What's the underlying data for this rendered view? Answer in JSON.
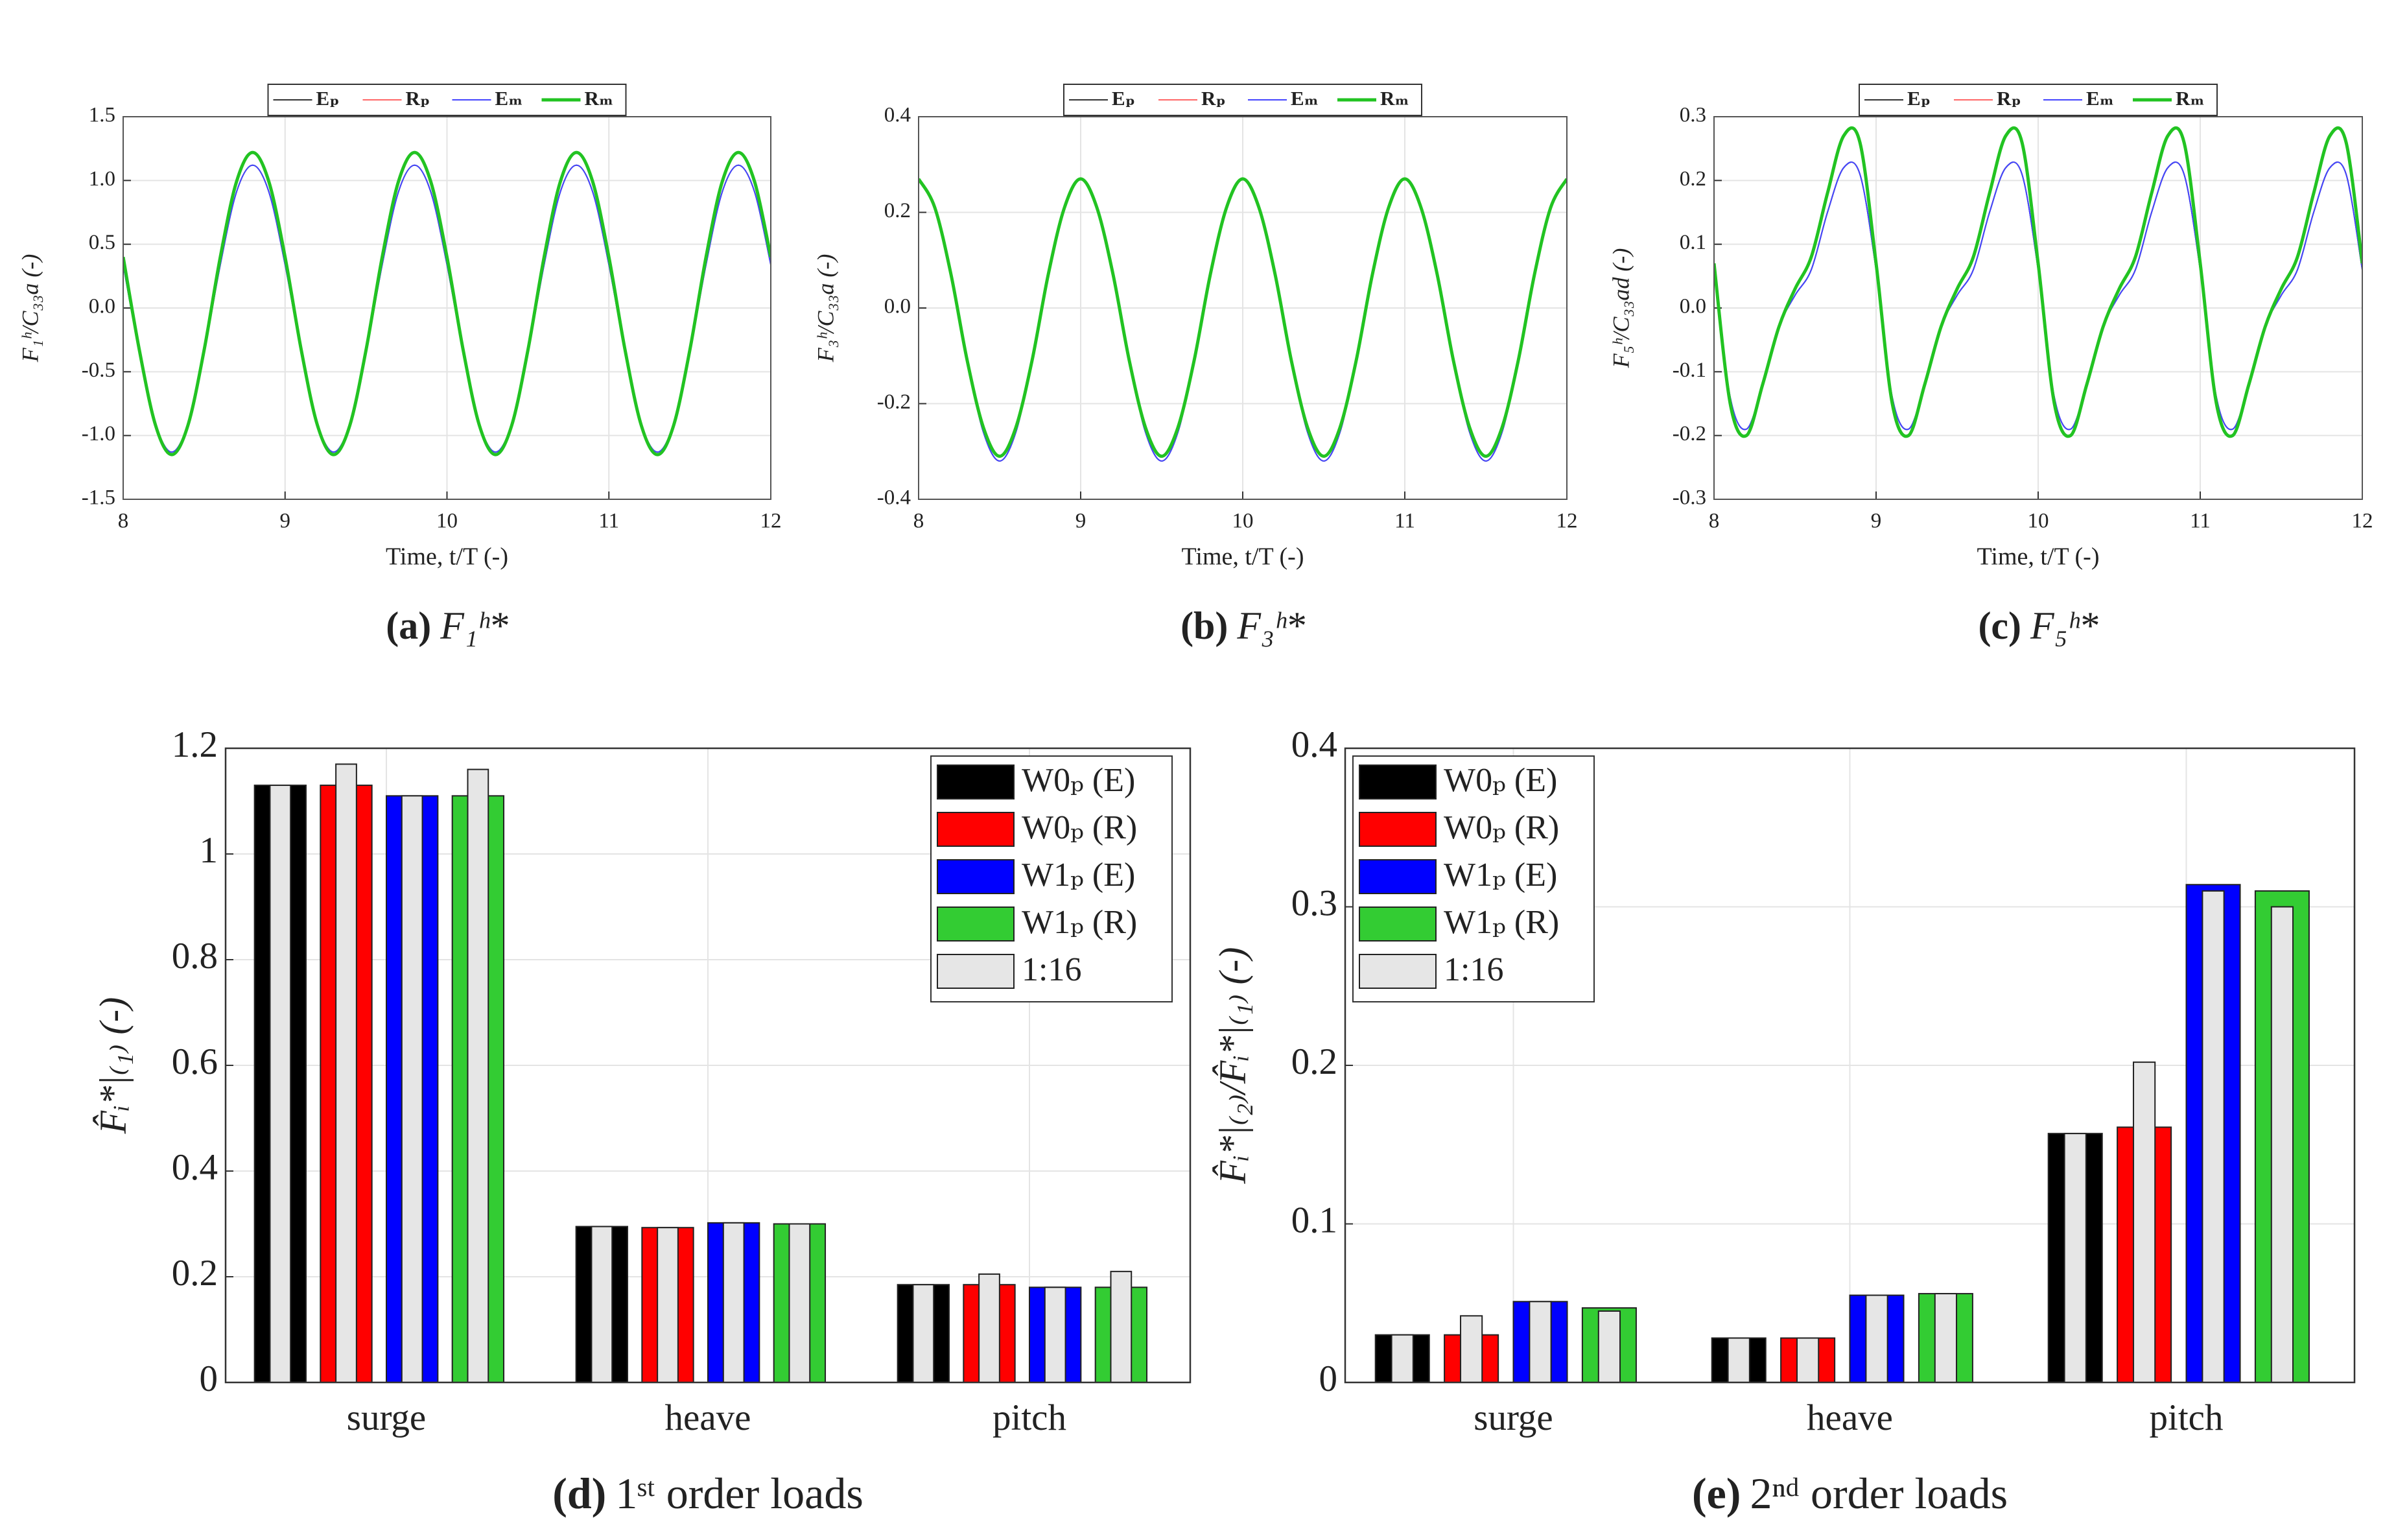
{
  "chart_data": [
    {
      "type": "line",
      "ylabel": "F₁ʰ/C₃₃a (-)",
      "xlabel": "Time, t/T (-)",
      "caption_tag": "(a)",
      "caption": "F₁ʰ*",
      "legend": "upper center",
      "grid": true,
      "x": [
        8,
        8.1,
        8.2,
        8.3,
        8.4,
        8.5,
        8.6,
        8.7,
        8.8,
        8.9,
        9,
        9.1,
        9.2,
        9.3,
        9.4,
        9.5,
        9.6,
        9.7,
        9.8,
        9.9,
        10,
        10.1,
        10.2,
        10.3,
        10.4,
        10.5,
        10.6,
        10.7,
        10.8,
        10.9,
        11,
        11.1,
        11.2,
        11.3,
        11.4,
        11.5,
        11.6,
        11.7,
        11.8,
        11.9,
        12
      ],
      "xlim": [
        8,
        12
      ],
      "xticks": [
        8,
        9,
        10,
        11,
        12
      ],
      "ylim": [
        -1.5,
        1.5
      ],
      "yticks": [
        -1.5,
        {
          "value": -1,
          "label": "-1.0"
        },
        -0.5,
        {
          "value": 0,
          "label": "0.0"
        },
        0.5,
        {
          "value": 1,
          "label": "1.0"
        },
        1.5
      ],
      "series": [
        {
          "name": "Eₚ",
          "color": "#333333",
          "linewidth": 1,
          "values": [
            0.34,
            -0.35,
            -0.91,
            -1.13,
            -0.91,
            -0.35,
            0.34,
            0.91,
            1.12,
            0.91,
            0.34,
            -0.35,
            -0.91,
            -1.13,
            -0.91,
            -0.35,
            0.34,
            0.91,
            1.12,
            0.91,
            0.34,
            -0.35,
            -0.91,
            -1.13,
            -0.91,
            -0.35,
            0.34,
            0.91,
            1.12,
            0.91,
            0.34,
            -0.35,
            -0.91,
            -1.13,
            -0.91,
            -0.35,
            0.34,
            0.91,
            1.12,
            0.91,
            0.34
          ]
        },
        {
          "name": "Rₚ",
          "color": "#ff6666",
          "linewidth": 1,
          "values": [
            0.4,
            -0.33,
            -0.92,
            -1.15,
            -0.92,
            -0.33,
            0.4,
            0.99,
            1.22,
            0.99,
            0.4,
            -0.33,
            -0.92,
            -1.15,
            -0.92,
            -0.33,
            0.4,
            0.99,
            1.22,
            0.99,
            0.4,
            -0.33,
            -0.92,
            -1.15,
            -0.92,
            -0.33,
            0.4,
            0.99,
            1.22,
            0.99,
            0.4,
            -0.33,
            -0.92,
            -1.15,
            -0.92,
            -0.33,
            0.4,
            0.99,
            1.22,
            0.99,
            0.4
          ]
        },
        {
          "name": "Eₘ",
          "color": "#4444ff",
          "linewidth": 1,
          "values": [
            0.34,
            -0.35,
            -0.91,
            -1.13,
            -0.91,
            -0.35,
            0.34,
            0.91,
            1.12,
            0.91,
            0.34,
            -0.35,
            -0.91,
            -1.13,
            -0.91,
            -0.35,
            0.34,
            0.91,
            1.12,
            0.91,
            0.34,
            -0.35,
            -0.91,
            -1.13,
            -0.91,
            -0.35,
            0.34,
            0.91,
            1.12,
            0.91,
            0.34,
            -0.35,
            -0.91,
            -1.13,
            -0.91,
            -0.35,
            0.34,
            0.91,
            1.12,
            0.91,
            0.34
          ]
        },
        {
          "name": "Rₘ",
          "color": "#22c322",
          "linewidth": 2.5,
          "values": [
            0.4,
            -0.33,
            -0.92,
            -1.15,
            -0.92,
            -0.33,
            0.4,
            0.99,
            1.22,
            0.99,
            0.4,
            -0.33,
            -0.92,
            -1.15,
            -0.92,
            -0.33,
            0.4,
            0.99,
            1.22,
            0.99,
            0.4,
            -0.33,
            -0.92,
            -1.15,
            -0.92,
            -0.33,
            0.4,
            0.99,
            1.22,
            0.99,
            0.4,
            -0.33,
            -0.92,
            -1.15,
            -0.92,
            -0.33,
            0.4,
            0.99,
            1.22,
            0.99,
            0.4
          ]
        }
      ]
    },
    {
      "type": "line",
      "ylabel": "F₃ʰ/C₃₃a (-)",
      "xlabel": "Time, t/T (-)",
      "caption_tag": "(b)",
      "caption": "F₃ʰ*",
      "legend": "upper center",
      "grid": true,
      "x": [
        8,
        8.1,
        8.2,
        8.3,
        8.4,
        8.5,
        8.6,
        8.7,
        8.8,
        8.9,
        9,
        9.1,
        9.2,
        9.3,
        9.4,
        9.5,
        9.6,
        9.7,
        9.8,
        9.9,
        10,
        10.1,
        10.2,
        10.3,
        10.4,
        10.5,
        10.6,
        10.7,
        10.8,
        10.9,
        11,
        11.1,
        11.2,
        11.3,
        11.4,
        11.5,
        11.6,
        11.7,
        11.8,
        11.9,
        12
      ],
      "xlim": [
        8,
        12
      ],
      "xticks": [
        8,
        9,
        10,
        11,
        12
      ],
      "ylim": [
        -0.4,
        0.4
      ],
      "yticks": [
        -0.4,
        -0.2,
        {
          "value": 0,
          "label": "0.0"
        },
        0.2,
        0.4
      ],
      "series": [
        {
          "name": "Eₚ",
          "color": "#333333",
          "linewidth": 1,
          "values": [
            0.27,
            0.21,
            0.07,
            -0.11,
            -0.26,
            -0.32,
            -0.26,
            -0.11,
            0.07,
            0.21,
            0.27,
            0.21,
            0.07,
            -0.11,
            -0.26,
            -0.32,
            -0.26,
            -0.11,
            0.07,
            0.21,
            0.27,
            0.21,
            0.07,
            -0.11,
            -0.26,
            -0.32,
            -0.26,
            -0.11,
            0.07,
            0.21,
            0.27,
            0.21,
            0.07,
            -0.11,
            -0.26,
            -0.32,
            -0.26,
            -0.11,
            0.07,
            0.21,
            0.27
          ]
        },
        {
          "name": "Rₚ",
          "color": "#ff6666",
          "linewidth": 1,
          "values": [
            0.27,
            0.21,
            0.07,
            -0.11,
            -0.25,
            -0.31,
            -0.25,
            -0.11,
            0.07,
            0.21,
            0.27,
            0.21,
            0.07,
            -0.11,
            -0.25,
            -0.31,
            -0.25,
            -0.11,
            0.07,
            0.21,
            0.27,
            0.21,
            0.07,
            -0.11,
            -0.25,
            -0.31,
            -0.25,
            -0.11,
            0.07,
            0.21,
            0.27,
            0.21,
            0.07,
            -0.11,
            -0.25,
            -0.31,
            -0.25,
            -0.11,
            0.07,
            0.21,
            0.27
          ]
        },
        {
          "name": "Eₘ",
          "color": "#4444ff",
          "linewidth": 1,
          "values": [
            0.27,
            0.21,
            0.07,
            -0.11,
            -0.26,
            -0.32,
            -0.26,
            -0.11,
            0.07,
            0.21,
            0.27,
            0.21,
            0.07,
            -0.11,
            -0.26,
            -0.32,
            -0.26,
            -0.11,
            0.07,
            0.21,
            0.27,
            0.21,
            0.07,
            -0.11,
            -0.26,
            -0.32,
            -0.26,
            -0.11,
            0.07,
            0.21,
            0.27,
            0.21,
            0.07,
            -0.11,
            -0.26,
            -0.32,
            -0.26,
            -0.11,
            0.07,
            0.21,
            0.27
          ]
        },
        {
          "name": "Rₘ",
          "color": "#22c322",
          "linewidth": 2.5,
          "values": [
            0.27,
            0.21,
            0.07,
            -0.11,
            -0.25,
            -0.31,
            -0.25,
            -0.11,
            0.07,
            0.21,
            0.27,
            0.21,
            0.07,
            -0.11,
            -0.25,
            -0.31,
            -0.25,
            -0.11,
            0.07,
            0.21,
            0.27,
            0.21,
            0.07,
            -0.11,
            -0.25,
            -0.31,
            -0.25,
            -0.11,
            0.07,
            0.21,
            0.27,
            0.21,
            0.07,
            -0.11,
            -0.25,
            -0.31,
            -0.25,
            -0.11,
            0.07,
            0.21,
            0.27
          ]
        }
      ]
    },
    {
      "type": "line",
      "ylabel": "F₅ʰ/C₃₃ad (-)",
      "xlabel": "Time, t/T (-)",
      "caption_tag": "(c)",
      "caption": "F₅ʰ*",
      "legend": "upper center",
      "grid": true,
      "x": [
        8,
        8.1,
        8.2,
        8.3,
        8.4,
        8.5,
        8.6,
        8.7,
        8.8,
        8.9,
        9,
        9.1,
        9.2,
        9.3,
        9.4,
        9.5,
        9.6,
        9.7,
        9.8,
        9.9,
        10,
        10.1,
        10.2,
        10.3,
        10.4,
        10.5,
        10.6,
        10.7,
        10.8,
        10.9,
        11,
        11.1,
        11.2,
        11.3,
        11.4,
        11.5,
        11.6,
        11.7,
        11.8,
        11.9,
        12
      ],
      "xlim": [
        8,
        12
      ],
      "xticks": [
        8,
        9,
        10,
        11,
        12
      ],
      "ylim": [
        -0.3,
        0.3
      ],
      "yticks": [
        -0.3,
        -0.2,
        -0.1,
        {
          "value": 0,
          "label": "0.0"
        },
        0.1,
        0.2,
        0.3
      ],
      "series": [
        {
          "name": "Eₚ",
          "color": "#333333",
          "linewidth": 1,
          "values": [
            0.06,
            -0.14,
            -0.19,
            -0.12,
            -0.03,
            0.02,
            0.06,
            0.15,
            0.22,
            0.21,
            0.06,
            -0.14,
            -0.19,
            -0.12,
            -0.03,
            0.02,
            0.06,
            0.15,
            0.22,
            0.21,
            0.06,
            -0.14,
            -0.19,
            -0.12,
            -0.03,
            0.02,
            0.06,
            0.15,
            0.22,
            0.21,
            0.06,
            -0.14,
            -0.19,
            -0.12,
            -0.03,
            0.02,
            0.06,
            0.15,
            0.22,
            0.21,
            0.06
          ]
        },
        {
          "name": "Rₚ",
          "color": "#ff6666",
          "linewidth": 1,
          "values": [
            0.07,
            -0.15,
            -0.2,
            -0.12,
            -0.03,
            0.03,
            0.08,
            0.18,
            0.27,
            0.26,
            0.07,
            -0.15,
            -0.2,
            -0.12,
            -0.03,
            0.03,
            0.08,
            0.18,
            0.27,
            0.26,
            0.07,
            -0.15,
            -0.2,
            -0.12,
            -0.03,
            0.03,
            0.08,
            0.18,
            0.27,
            0.26,
            0.07,
            -0.15,
            -0.2,
            -0.12,
            -0.03,
            0.03,
            0.08,
            0.18,
            0.27,
            0.26,
            0.07
          ]
        },
        {
          "name": "Eₘ",
          "color": "#4444ff",
          "linewidth": 1,
          "values": [
            0.06,
            -0.14,
            -0.19,
            -0.12,
            -0.03,
            0.02,
            0.06,
            0.15,
            0.22,
            0.21,
            0.06,
            -0.14,
            -0.19,
            -0.12,
            -0.03,
            0.02,
            0.06,
            0.15,
            0.22,
            0.21,
            0.06,
            -0.14,
            -0.19,
            -0.12,
            -0.03,
            0.02,
            0.06,
            0.15,
            0.22,
            0.21,
            0.06,
            -0.14,
            -0.19,
            -0.12,
            -0.03,
            0.02,
            0.06,
            0.15,
            0.22,
            0.21,
            0.06
          ]
        },
        {
          "name": "Rₘ",
          "color": "#22c322",
          "linewidth": 2.5,
          "values": [
            0.07,
            -0.15,
            -0.2,
            -0.12,
            -0.03,
            0.03,
            0.08,
            0.18,
            0.27,
            0.26,
            0.07,
            -0.15,
            -0.2,
            -0.12,
            -0.03,
            0.03,
            0.08,
            0.18,
            0.27,
            0.26,
            0.07,
            -0.15,
            -0.2,
            -0.12,
            -0.03,
            0.03,
            0.08,
            0.18,
            0.27,
            0.26,
            0.07,
            -0.15,
            -0.2,
            -0.12,
            -0.03,
            0.03,
            0.08,
            0.18,
            0.27,
            0.26,
            0.07
          ]
        }
      ]
    },
    {
      "type": "bar",
      "ylabel": "F̂ᵢ*|₍₁₎ (-)",
      "caption_tag": "(d)",
      "caption": "1ˢᵗ order loads",
      "legend": "upper right",
      "grid": true,
      "categories": [
        "surge",
        "heave",
        "pitch"
      ],
      "ylim": [
        0,
        1.2
      ],
      "yticks": [
        0,
        0.2,
        0.4,
        0.6,
        0.8,
        1,
        1.2
      ],
      "series": [
        {
          "name": "W0ₚ (E)",
          "color": "#000000",
          "values": [
            1.13,
            0.295,
            0.185
          ]
        },
        {
          "name": "W0ₚ (R)",
          "color": "#ff0000",
          "values": [
            1.13,
            0.293,
            0.185
          ]
        },
        {
          "name": "W1ₚ (E)",
          "color": "#0000ff",
          "values": [
            1.11,
            0.302,
            0.18
          ]
        },
        {
          "name": "W1ₚ (R)",
          "color": "#33cc33",
          "values": [
            1.11,
            0.3,
            0.18
          ]
        },
        {
          "name": "1:16",
          "color": "#e6e6e6",
          "values": [
            [
              1.13,
              1.17,
              1.11,
              1.16
            ],
            [
              0.295,
              0.293,
              0.302,
              0.3
            ],
            [
              0.185,
              0.205,
              0.18,
              0.21
            ]
          ]
        }
      ]
    },
    {
      "type": "bar",
      "ylabel": "F̂ᵢ*|₍₂₎/F̂ᵢ*|₍₁₎ (-)",
      "caption_tag": "(e)",
      "caption": "2ⁿᵈ order loads",
      "legend": "upper left",
      "grid": true,
      "categories": [
        "surge",
        "heave",
        "pitch"
      ],
      "ylim": [
        0,
        0.4
      ],
      "yticks": [
        0,
        0.1,
        0.2,
        0.3,
        0.4
      ],
      "series": [
        {
          "name": "W0ₚ (E)",
          "color": "#000000",
          "values": [
            0.03,
            0.028,
            0.157
          ]
        },
        {
          "name": "W0ₚ (R)",
          "color": "#ff0000",
          "values": [
            0.03,
            0.028,
            0.161
          ]
        },
        {
          "name": "W1ₚ (E)",
          "color": "#0000ff",
          "values": [
            0.051,
            0.055,
            0.314
          ]
        },
        {
          "name": "W1ₚ (R)",
          "color": "#33cc33",
          "values": [
            0.047,
            0.056,
            0.31
          ]
        },
        {
          "name": "1:16",
          "color": "#e6e6e6",
          "values": [
            [
              0.03,
              0.042,
              0.051,
              0.045
            ],
            [
              0.028,
              0.028,
              0.055,
              0.056
            ],
            [
              0.157,
              0.202,
              0.31,
              0.3
            ]
          ]
        }
      ]
    }
  ]
}
